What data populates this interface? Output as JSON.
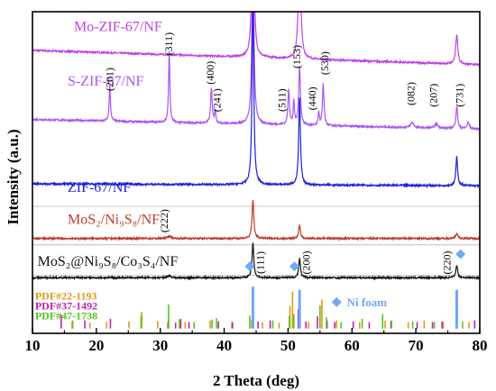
{
  "chart_data": {
    "type": "line",
    "title": "",
    "xlabel": "2 Theta (deg)",
    "ylabel": "Intensity (a.u.)",
    "xlim": [
      10,
      80
    ],
    "xticks": [
      10,
      20,
      30,
      40,
      50,
      60,
      70,
      80
    ],
    "ylim": [
      0,
      100
    ],
    "yticks_shown": false,
    "grid": false,
    "series": [
      {
        "name": "Mo-ZIF-67/NF",
        "color": "#bf40e6",
        "offset": 88,
        "baseline_drift": -4.5,
        "peaks": [
          [
            44.5,
            60,
            0.18
          ],
          [
            51.8,
            40,
            0.2
          ],
          [
            76.4,
            9,
            0.2
          ]
        ]
      },
      {
        "name": "S-ZIF-67/NF",
        "color": "#a855f7",
        "offset": 66.5,
        "baseline_drift": -3,
        "peaks": [
          [
            22.1,
            11,
            0.12
          ],
          [
            31.4,
            22,
            0.12
          ],
          [
            38.0,
            11,
            0.14
          ],
          [
            38.6,
            4,
            0.12
          ],
          [
            44.5,
            55,
            0.18
          ],
          [
            50.1,
            11,
            0.14
          ],
          [
            50.9,
            7,
            0.12
          ],
          [
            51.8,
            18,
            0.16
          ],
          [
            54.8,
            4,
            0.12
          ],
          [
            55.5,
            13,
            0.14
          ],
          [
            69.4,
            1.6,
            0.3
          ],
          [
            73.2,
            1.3,
            0.3
          ],
          [
            76.4,
            7,
            0.16
          ],
          [
            78.2,
            2,
            0.2
          ]
        ]
      },
      {
        "name": "ZIF-67/NF",
        "color": "#1f1fd6",
        "offset": 46.5,
        "baseline_drift": -0.6,
        "peaks": [
          [
            44.5,
            58,
            0.16
          ],
          [
            51.8,
            27,
            0.16
          ],
          [
            76.4,
            9,
            0.16
          ]
        ]
      },
      {
        "name": "MoS2/Ni9S8/NF",
        "color": "#c0392b",
        "offset": 29.5,
        "baseline_drift": 0,
        "peaks": [
          [
            31.4,
            0.7,
            0.3
          ],
          [
            44.5,
            12,
            0.16
          ],
          [
            51.8,
            4,
            0.16
          ],
          [
            76.4,
            1.5,
            0.2
          ]
        ]
      },
      {
        "name": "MoS2@Ni9S8/Co3S4/NF",
        "color": "#111111",
        "offset": 17.3,
        "baseline_drift": 0,
        "peaks": [
          [
            31.4,
            0.7,
            0.3
          ],
          [
            44.5,
            11,
            0.16
          ],
          [
            51.8,
            6,
            0.16
          ],
          [
            76.4,
            4,
            0.16
          ]
        ]
      }
    ],
    "series_labels": [
      {
        "text": "Mo-ZIF-67/NF",
        "color": "#bf40e6",
        "x": 16.5,
        "y": 94
      },
      {
        "text": "S-ZIF-67/NF",
        "color": "#a855f7",
        "x": 15.5,
        "y": 77
      },
      {
        "text": "ZIF-67/NF",
        "color": "#1f1fd6",
        "x": 15.5,
        "y": 44
      },
      {
        "text": "MoS₂/Ni₉S₈/NF",
        "color": "#c0392b",
        "x": 15.5,
        "y": 34
      },
      {
        "text": "MoS₂@Ni₉S₈/Co₃S₄/NF",
        "color": "#111111",
        "x": 10.8,
        "y": 21
      }
    ],
    "annotations": [
      {
        "text": "(201)",
        "x": 22.6,
        "y": 79,
        "rotate": true
      },
      {
        "text": "(311)",
        "x": 31.9,
        "y": 90,
        "rotate": true
      },
      {
        "text": "(400)",
        "x": 38.4,
        "y": 81,
        "rotate": true
      },
      {
        "text": "(241)",
        "x": 39.4,
        "y": 72.5,
        "rotate": true
      },
      {
        "text": "(511)",
        "x": 49.6,
        "y": 72.5,
        "rotate": true
      },
      {
        "text": "(153)",
        "x": 51.9,
        "y": 86,
        "rotate": true
      },
      {
        "text": "(440)",
        "x": 54.3,
        "y": 73,
        "rotate": true
      },
      {
        "text": "(530)",
        "x": 56.3,
        "y": 84,
        "rotate": true
      },
      {
        "text": "(082)",
        "x": 69.8,
        "y": 74.5,
        "rotate": true
      },
      {
        "text": "(207)",
        "x": 73.3,
        "y": 74,
        "rotate": true
      },
      {
        "text": "(731)",
        "x": 77.4,
        "y": 74,
        "rotate": true
      },
      {
        "text": "(222)",
        "x": 31.2,
        "y": 35,
        "rotate": true
      },
      {
        "text": "(111)",
        "x": 46.2,
        "y": 22,
        "rotate": true
      },
      {
        "text": "(200)",
        "x": 53.4,
        "y": 22,
        "rotate": true
      },
      {
        "text": "(220)",
        "x": 75.4,
        "y": 22,
        "rotate": true
      }
    ],
    "ni_foam_markers": [
      {
        "x": 44.0,
        "y": 20.8
      },
      {
        "x": 51.0,
        "y": 20.8
      },
      {
        "x": 77.0,
        "y": 24.6
      }
    ],
    "legend": {
      "placement": "bottom-left",
      "entries": [
        {
          "text": "PDF#22-1193",
          "color": "#e09a1a"
        },
        {
          "text": "PDF#37-1492",
          "color": "#c21fb0"
        },
        {
          "text": "PDF#47-1738",
          "color": "#55c520"
        }
      ],
      "ni_foam_label": "Ni foam",
      "ni_foam_color": "#6fa8f5"
    },
    "reference_lines": {
      "base_y": 1.5,
      "ni_foam": {
        "color": "#6fa8f5",
        "lines": [
          [
            44.5,
            13
          ],
          [
            51.8,
            12
          ],
          [
            76.4,
            12
          ]
        ]
      },
      "pdf_22_1193": {
        "color": "#e09a1a",
        "lines": [
          [
            16.2,
            2.2
          ],
          [
            19.0,
            1.8
          ],
          [
            21.6,
            2.0
          ],
          [
            25.1,
            2.2
          ],
          [
            27.1,
            5.2
          ],
          [
            29.6,
            2.3
          ],
          [
            31.3,
            2.8
          ],
          [
            33.9,
            2.0
          ],
          [
            37.8,
            2.4
          ],
          [
            41.2,
            2.0
          ],
          [
            44.3,
            2.8
          ],
          [
            46.0,
            2.0
          ],
          [
            48.6,
            1.8
          ],
          [
            50.3,
            7.0
          ],
          [
            50.7,
            11.5
          ],
          [
            53.2,
            2.0
          ],
          [
            55.3,
            9.0
          ],
          [
            57.6,
            2.5
          ],
          [
            61.2,
            2.0
          ],
          [
            65.2,
            2.5
          ],
          [
            68.8,
            2.0
          ],
          [
            71.3,
            2.5
          ],
          [
            74.3,
            2.0
          ],
          [
            78.3,
            2.0
          ]
        ]
      },
      "pdf_37_1492": {
        "color": "#c21fb0",
        "lines": [
          [
            14.5,
            4.2
          ],
          [
            18.2,
            2.5
          ],
          [
            22.2,
            3.0
          ],
          [
            31.2,
            2.0
          ],
          [
            32.4,
            1.8
          ],
          [
            33.2,
            3.0
          ],
          [
            34.5,
            2.0
          ],
          [
            35.3,
            2.0
          ],
          [
            39.1,
            2.2
          ],
          [
            41.3,
            2.0
          ],
          [
            45.3,
            2.2
          ],
          [
            47.2,
            2.5
          ],
          [
            51.6,
            6.0
          ],
          [
            52.8,
            2.2
          ],
          [
            54.6,
            3.8
          ],
          [
            56.1,
            2.5
          ],
          [
            57.3,
            2.0
          ],
          [
            60.2,
            2.2
          ],
          [
            62.7,
            2.0
          ],
          [
            66.1,
            2.2
          ],
          [
            70.2,
            2.0
          ],
          [
            72.6,
            2.0
          ],
          [
            74.1,
            2.2
          ],
          [
            79.2,
            2.5
          ]
        ]
      },
      "pdf_47_1738": {
        "color": "#55c520",
        "lines": [
          [
            16.3,
            2.5
          ],
          [
            27.0,
            4.0
          ],
          [
            31.3,
            7.5
          ],
          [
            33.0,
            2.8
          ],
          [
            35.3,
            2.0
          ],
          [
            38.1,
            2.8
          ],
          [
            38.8,
            3.2
          ],
          [
            44.0,
            4.0
          ],
          [
            47.6,
            2.5
          ],
          [
            50.2,
            3.8
          ],
          [
            50.9,
            4.5
          ],
          [
            55.0,
            7.2
          ],
          [
            56.0,
            3.5
          ],
          [
            58.3,
            2.0
          ],
          [
            61.6,
            3.0
          ],
          [
            64.8,
            4.5
          ],
          [
            66.2,
            2.5
          ],
          [
            69.5,
            2.2
          ],
          [
            72.9,
            2.0
          ],
          [
            76.3,
            2.8
          ],
          [
            77.3,
            2.2
          ]
        ]
      }
    },
    "separator_lines_y": [
      39.5,
      27.5,
      18
    ]
  }
}
